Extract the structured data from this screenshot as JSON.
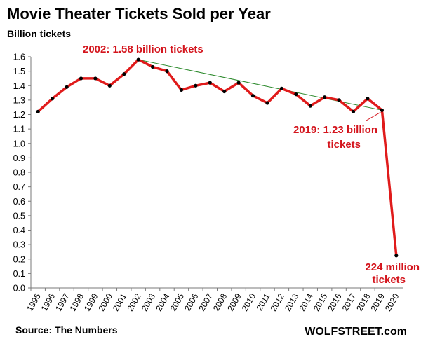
{
  "chart_data": {
    "type": "line",
    "title": "Movie Theater Tickets Sold per Year",
    "ylabel": "Billion tickets",
    "xlabel": "",
    "ylim": [
      0,
      1.6
    ],
    "yticks": [
      "0.0",
      "0.1",
      "0.2",
      "0.3",
      "0.4",
      "0.5",
      "0.6",
      "0.7",
      "0.8",
      "0.9",
      "1.0",
      "1.1",
      "1.2",
      "1.3",
      "1.4",
      "1.5",
      "1.6"
    ],
    "categories": [
      "1995",
      "1996",
      "1997",
      "1998",
      "1999",
      "2000",
      "2001",
      "2002",
      "2003",
      "2004",
      "2005",
      "2006",
      "2007",
      "2008",
      "2009",
      "2010",
      "2011",
      "2012",
      "2013",
      "2014",
      "2015",
      "2016",
      "2017",
      "2018",
      "2019",
      "2020"
    ],
    "series": [
      {
        "values": [
          1.22,
          1.31,
          1.39,
          1.45,
          1.45,
          1.4,
          1.48,
          1.58,
          1.53,
          1.5,
          1.37,
          1.4,
          1.42,
          1.36,
          1.42,
          1.33,
          1.28,
          1.38,
          1.34,
          1.26,
          1.32,
          1.3,
          1.22,
          1.31,
          1.23,
          0.224
        ],
        "color": "#e01b1b"
      }
    ],
    "trendline": {
      "from": "2002",
      "to": "2019",
      "from_value": 1.58,
      "to_value": 1.23,
      "color": "#2e8b2e"
    },
    "grid": false,
    "annotations": [
      {
        "id": "peak",
        "lines": [
          "2002: 1.58 billion tickets"
        ],
        "color": "#d4151d"
      },
      {
        "id": "y2019",
        "lines": [
          "2019: 1.23 billion",
          "tickets"
        ],
        "color": "#d4151d"
      },
      {
        "id": "y2020",
        "lines": [
          "224 million",
          "tickets"
        ],
        "color": "#d4151d"
      }
    ]
  },
  "footer": {
    "source": "Source: The Numbers",
    "brand": "WOLFSTREET.com"
  }
}
